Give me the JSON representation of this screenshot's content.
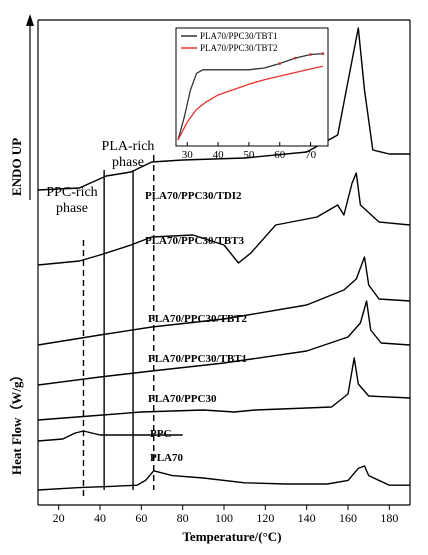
{
  "chart_data": [
    {
      "type": "line",
      "xlabel": "Temperature/(°C)",
      "ylabel": "Heat Flow（W/g）",
      "ylabel_arrow": "ENDO UP",
      "x_ticks": [
        20,
        40,
        60,
        80,
        100,
        120,
        140,
        160,
        180
      ],
      "x_tick_labels": [
        "20",
        "40",
        "60",
        "80",
        "100",
        "120",
        "140",
        "160",
        "180"
      ],
      "xlim": [
        10,
        190
      ],
      "region_labels": [
        {
          "text": "PPC-rich\nphase",
          "lines": [
            "PPC-rich",
            "phase"
          ]
        },
        {
          "text": "PLA-rich\nphase",
          "lines": [
            "PLA-rich",
            "phase"
          ]
        }
      ],
      "reference_lines": [
        {
          "x": 32,
          "style": "dashed"
        },
        {
          "x": 42,
          "style": "solid"
        },
        {
          "x": 56,
          "style": "solid"
        },
        {
          "x": 66,
          "style": "dashed"
        }
      ],
      "series": [
        {
          "name": "PLA70/PPC30/TDI2",
          "points": [
            [
              10,
              20
            ],
            [
              30,
              22
            ],
            [
              43,
              34
            ],
            [
              55,
              38
            ],
            [
              65,
              48
            ],
            [
              80,
              50
            ],
            [
              110,
              52
            ],
            [
              140,
              58
            ],
            [
              155,
              75
            ],
            [
              162,
              150
            ],
            [
              165,
              182
            ],
            [
              168,
              120
            ],
            [
              172,
              60
            ],
            [
              180,
              56
            ],
            [
              190,
              56
            ]
          ]
        },
        {
          "name": "PLA70/PPC30/TBT3",
          "points": [
            [
              10,
              0
            ],
            [
              30,
              4
            ],
            [
              40,
              10
            ],
            [
              55,
              20
            ],
            [
              65,
              28
            ],
            [
              85,
              30
            ],
            [
              100,
              20
            ],
            [
              107,
              2
            ],
            [
              113,
              12
            ],
            [
              125,
              40
            ],
            [
              145,
              48
            ],
            [
              155,
              60
            ],
            [
              158,
              50
            ],
            [
              162,
              82
            ],
            [
              164,
              92
            ],
            [
              166,
              60
            ],
            [
              175,
              43
            ],
            [
              190,
              40
            ]
          ]
        },
        {
          "name": "PLA70/PPC30/TBT2",
          "points": [
            [
              10,
              0
            ],
            [
              40,
              10
            ],
            [
              65,
              18
            ],
            [
              100,
              26
            ],
            [
              140,
              40
            ],
            [
              158,
              55
            ],
            [
              164,
              66
            ],
            [
              168,
              88
            ],
            [
              170,
              60
            ],
            [
              175,
              46
            ],
            [
              190,
              44
            ]
          ]
        },
        {
          "name": "PLA70/PPC30/TBT1",
          "points": [
            [
              10,
              0
            ],
            [
              40,
              8
            ],
            [
              65,
              14
            ],
            [
              100,
              22
            ],
            [
              140,
              34
            ],
            [
              160,
              48
            ],
            [
              166,
              62
            ],
            [
              169,
              84
            ],
            [
              171,
              55
            ],
            [
              176,
              42
            ],
            [
              190,
              40
            ]
          ]
        },
        {
          "name": "PLA70/PPC30",
          "points": [
            [
              10,
              0
            ],
            [
              35,
              4
            ],
            [
              60,
              8
            ],
            [
              90,
              10
            ],
            [
              105,
              8
            ],
            [
              115,
              10
            ],
            [
              140,
              12
            ],
            [
              152,
              13
            ],
            [
              160,
              26
            ],
            [
              163,
              62
            ],
            [
              165,
              36
            ],
            [
              170,
              24
            ],
            [
              190,
              22
            ]
          ]
        },
        {
          "name": "PPC",
          "points": [
            [
              10,
              0
            ],
            [
              22,
              2
            ],
            [
              28,
              8
            ],
            [
              32,
              10
            ],
            [
              40,
              6
            ],
            [
              55,
              6
            ],
            [
              80,
              6
            ]
          ]
        },
        {
          "name": "PLA70",
          "points": [
            [
              10,
              0
            ],
            [
              30,
              2
            ],
            [
              45,
              3
            ],
            [
              58,
              4
            ],
            [
              62,
              8
            ],
            [
              66,
              16
            ],
            [
              75,
              12
            ],
            [
              90,
              10
            ],
            [
              110,
              6
            ],
            [
              130,
              5
            ],
            [
              150,
              5
            ],
            [
              160,
              8
            ],
            [
              165,
              18
            ],
            [
              168,
              20
            ],
            [
              170,
              12
            ],
            [
              180,
              4
            ],
            [
              190,
              4
            ]
          ]
        }
      ]
    },
    {
      "type": "line",
      "x_ticks": [
        30,
        40,
        50,
        60,
        70
      ],
      "x_tick_labels": [
        "30",
        "40",
        "50",
        "60",
        "70"
      ],
      "xlim": [
        27,
        75
      ],
      "ylim": [
        0,
        100
      ],
      "series": [
        {
          "name": "PLA70/PPC30/TBT1",
          "color": "#333333",
          "points": [
            [
              27,
              0
            ],
            [
              29,
              25
            ],
            [
              31,
              55
            ],
            [
              33,
              74
            ],
            [
              35,
              78
            ],
            [
              40,
              78
            ],
            [
              45,
              78
            ],
            [
              50,
              78
            ],
            [
              55,
              80
            ],
            [
              60,
              85
            ],
            [
              65,
              91
            ],
            [
              70,
              95
            ],
            [
              74,
              96
            ]
          ]
        },
        {
          "name": "PLA70/PPC30/TBT2",
          "color": "#e8322a",
          "points": [
            [
              27,
              0
            ],
            [
              30,
              20
            ],
            [
              33,
              34
            ],
            [
              36,
              42
            ],
            [
              40,
              50
            ],
            [
              45,
              56
            ],
            [
              50,
              62
            ],
            [
              55,
              67
            ],
            [
              60,
              71
            ],
            [
              65,
              75
            ],
            [
              70,
              79
            ],
            [
              74,
              82
            ]
          ]
        }
      ]
    }
  ]
}
